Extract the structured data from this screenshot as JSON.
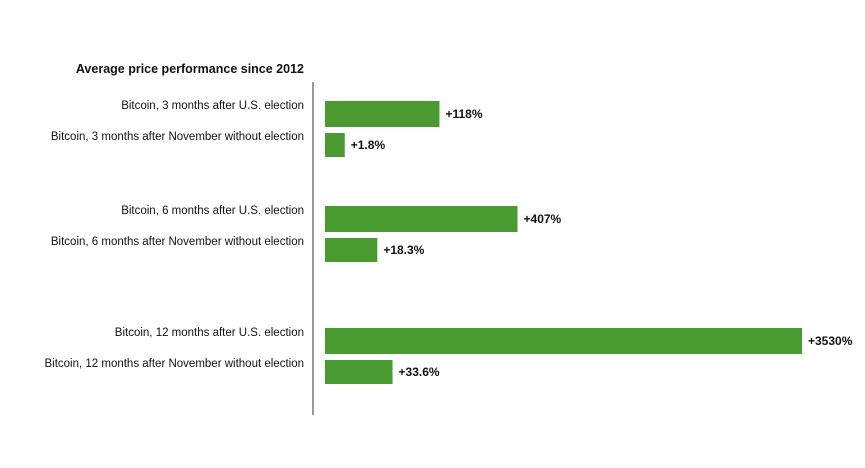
{
  "chart_data": {
    "type": "bar",
    "orientation": "horizontal",
    "title": "Average price performance since 2012",
    "xlabel": "",
    "ylabel": "",
    "grid": false,
    "bar_color": "#4a9a32",
    "categories": [
      "Bitcoin, 3 months after U.S. election",
      "Bitcoin, 3 months after November without election",
      "Bitcoin, 6 months after U.S. election",
      "Bitcoin, 6 months after November without election",
      "Bitcoin, 12 months after U.S. election",
      "Bitcoin, 12 months after November without election"
    ],
    "values": [
      118,
      1.8,
      407,
      18.3,
      3530,
      33.6
    ],
    "value_labels": [
      "+118%",
      "+1.8%",
      "+407%",
      "+18.3%",
      "+3530%",
      "+33.6%"
    ]
  }
}
